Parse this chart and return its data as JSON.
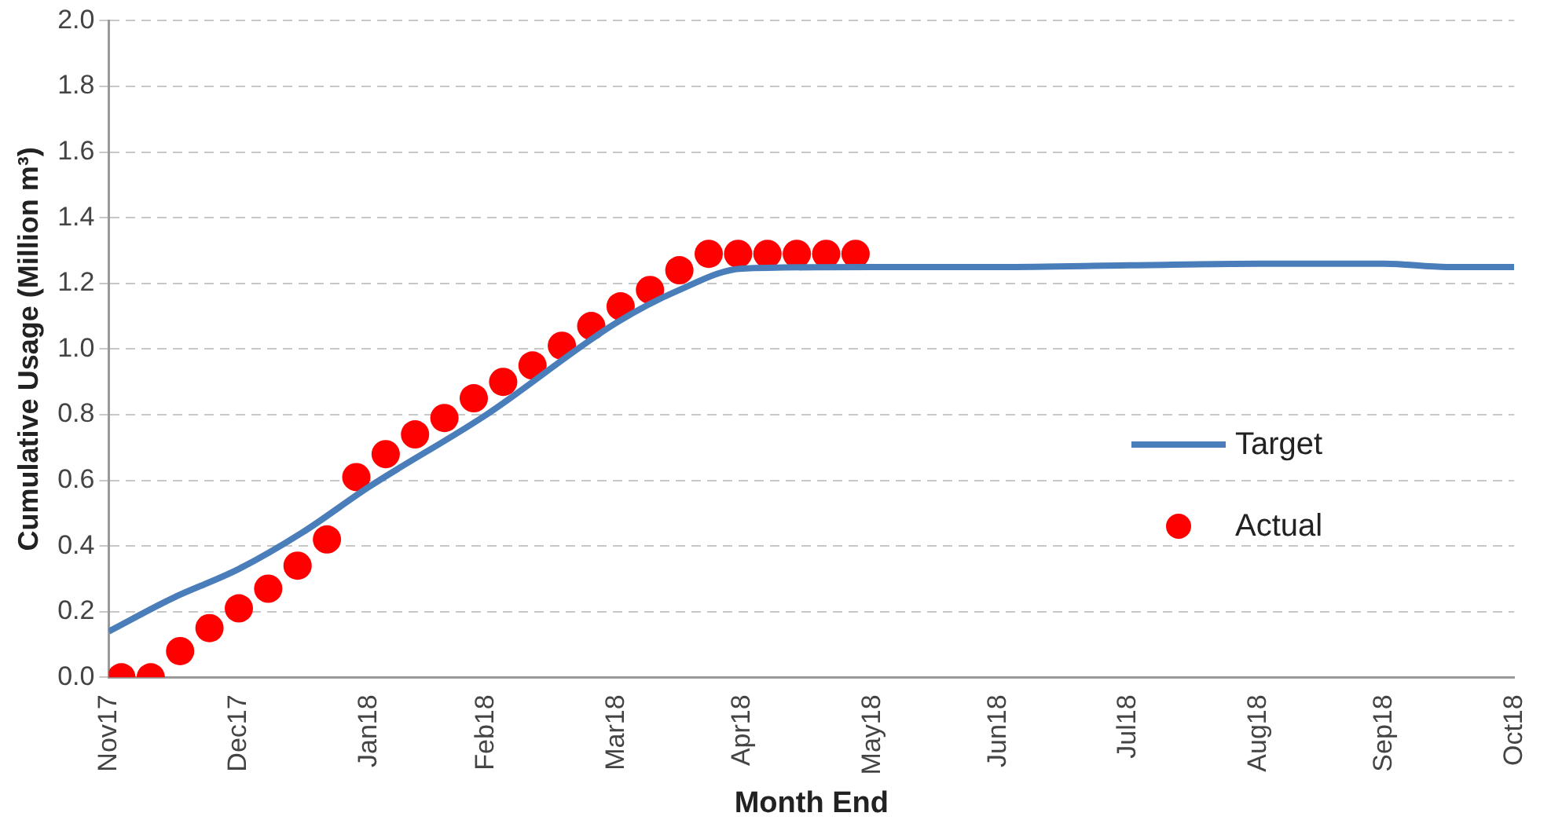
{
  "chart_data": {
    "type": "line",
    "xlabel": "Month End",
    "ylabel": "Cumulative Usage (Million m³)",
    "xlim": [
      "2017-11-30",
      "2018-10-31"
    ],
    "xticks": [
      {
        "value": "2017-11-30",
        "label": "Nov17"
      },
      {
        "value": "2017-12-31",
        "label": "Dec17"
      },
      {
        "value": "2018-01-31",
        "label": "Jan18"
      },
      {
        "value": "2018-02-28",
        "label": "Feb18"
      },
      {
        "value": "2018-03-31",
        "label": "Mar18"
      },
      {
        "value": "2018-04-30",
        "label": "Apr18"
      },
      {
        "value": "2018-05-31",
        "label": "May18"
      },
      {
        "value": "2018-06-30",
        "label": "Jun18"
      },
      {
        "value": "2018-07-31",
        "label": "Jul18"
      },
      {
        "value": "2018-08-31",
        "label": "Aug18"
      },
      {
        "value": "2018-09-30",
        "label": "Sep18"
      },
      {
        "value": "2018-10-31",
        "label": "Oct18"
      }
    ],
    "ylim": [
      0,
      2
    ],
    "yticks": [
      {
        "value": 0,
        "label": "0.0"
      },
      {
        "value": 0.2,
        "label": "0.2"
      },
      {
        "value": 0.4,
        "label": "0.4"
      },
      {
        "value": 0.6,
        "label": "0.6"
      },
      {
        "value": 0.8,
        "label": "0.8"
      },
      {
        "value": 1,
        "label": "1.0"
      },
      {
        "value": 1.2,
        "label": "1.2"
      },
      {
        "value": 1.4,
        "label": "1.4"
      },
      {
        "value": 1.6,
        "label": "1.6"
      },
      {
        "value": 1.8,
        "label": "1.8"
      },
      {
        "value": 2,
        "label": "2.0"
      }
    ],
    "grid": "y",
    "legend": "right",
    "series": [
      {
        "name": "Target",
        "type": "line",
        "color": "#4a7ebb",
        "marker": "none",
        "line_style": "solid",
        "x": [
          "2017-11-30",
          "2017-12-15",
          "2017-12-31",
          "2018-01-15",
          "2018-01-31",
          "2018-02-28",
          "2018-03-31",
          "2018-04-15",
          "2018-04-30",
          "2018-05-31",
          "2018-06-30",
          "2018-07-31",
          "2018-08-31",
          "2018-09-30",
          "2018-10-15",
          "2018-10-31"
        ],
        "values": [
          0.14,
          0.24,
          0.33,
          0.44,
          0.58,
          0.8,
          1.08,
          1.18,
          1.245,
          1.25,
          1.25,
          1.255,
          1.26,
          1.26,
          1.25,
          1.25
        ]
      },
      {
        "name": "Actual",
        "type": "scatter",
        "color": "#ff0000",
        "marker": "circle",
        "x": [
          "2017-12-03",
          "2017-12-10",
          "2017-12-17",
          "2017-12-24",
          "2017-12-31",
          "2018-01-07",
          "2018-01-14",
          "2018-01-21",
          "2018-01-28",
          "2018-02-04",
          "2018-02-11",
          "2018-02-18",
          "2018-02-25",
          "2018-03-04",
          "2018-03-11",
          "2018-03-18",
          "2018-03-25",
          "2018-04-01",
          "2018-04-08",
          "2018-04-15",
          "2018-04-22",
          "2018-04-29",
          "2018-05-06",
          "2018-05-13",
          "2018-05-20",
          "2018-05-27"
        ],
        "values": [
          0,
          0,
          0.08,
          0.15,
          0.21,
          0.27,
          0.34,
          0.42,
          0.61,
          0.68,
          0.74,
          0.79,
          0.85,
          0.9,
          0.95,
          1.01,
          1.07,
          1.13,
          1.18,
          1.24,
          1.29,
          1.29,
          1.29,
          1.29,
          1.29,
          1.29
        ]
      }
    ]
  }
}
